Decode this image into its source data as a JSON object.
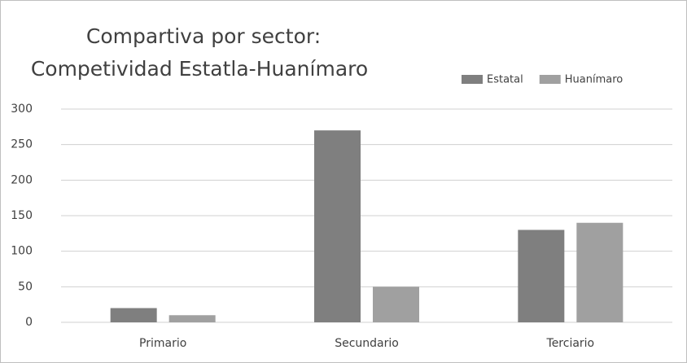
{
  "chart_data": {
    "type": "bar",
    "title": [
      "Compartiva por sector:",
      "Competividad Estatla-Huanímaro"
    ],
    "categories": [
      "Primario",
      "Secundario",
      "Terciario"
    ],
    "series": [
      {
        "name": "Estatal",
        "color": "#7f7f7f",
        "values": [
          20,
          270,
          130
        ]
      },
      {
        "name": "Huanímaro",
        "color": "#a0a0a0",
        "values": [
          10,
          50,
          140
        ]
      }
    ],
    "ylim": [
      0,
      300
    ],
    "yticks": [
      0,
      50,
      100,
      150,
      200,
      250,
      300
    ],
    "grid": true,
    "legend": "top-right"
  }
}
